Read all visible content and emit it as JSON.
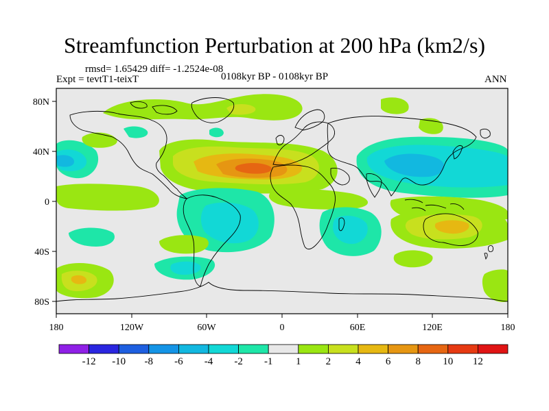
{
  "title": "Streamfunction Perturbation at 200 hPa (km2/s)",
  "stats": "rmsd= 1.65429 diff= -1.2524e-08",
  "experiment": "Expt = tevtT1-teixT",
  "period": "0108kyr BP - 0108kyr BP",
  "season": "ANN",
  "chart_data": {
    "type": "contour_map",
    "projection": "cylindrical equidistant",
    "field": "200 hPa streamfunction perturbation",
    "units": "km2/s",
    "lon_range": [
      -180,
      180
    ],
    "lat_range": [
      -90,
      90
    ],
    "x_ticks": [
      "180",
      "120W",
      "60W",
      "0",
      "60E",
      "120E",
      "180"
    ],
    "y_ticks": [
      "80N",
      "40N",
      "0",
      "40S",
      "80S"
    ],
    "colorbar": {
      "labels": [
        "-12",
        "-10",
        "-8",
        "-6",
        "-4",
        "-2",
        "-1",
        "1",
        "2",
        "4",
        "6",
        "8",
        "10",
        "12"
      ],
      "colors": [
        "#8f20e6",
        "#2a26e0",
        "#1e5fe0",
        "#1494e6",
        "#12b8e0",
        "#12d8d6",
        "#1ee6a8",
        "#e8e8e8",
        "#9ae612",
        "#c8e01e",
        "#e6b812",
        "#e69612",
        "#e66612",
        "#e63a12",
        "#e01414"
      ]
    },
    "features": [
      {
        "name": "north-atlantic-africa-high",
        "lon": -20,
        "lat": 28,
        "level": "8"
      },
      {
        "name": "asia-pacific-low",
        "lon": 100,
        "lat": 30,
        "level": "-6"
      },
      {
        "name": "north-atlantic-low",
        "lon": -160,
        "lat": 35,
        "level": "-4"
      },
      {
        "name": "south-america-low",
        "lon": -40,
        "lat": -15,
        "level": "-4"
      },
      {
        "name": "indian-ocean-low",
        "lon": 55,
        "lat": -15,
        "level": "-4"
      },
      {
        "name": "australia-high",
        "lon": 130,
        "lat": -20,
        "level": "4"
      },
      {
        "name": "south-pacific-high",
        "lon": -160,
        "lat": -60,
        "level": "6"
      },
      {
        "name": "arctic-high",
        "lon": -30,
        "lat": 80,
        "level": "4"
      }
    ]
  }
}
